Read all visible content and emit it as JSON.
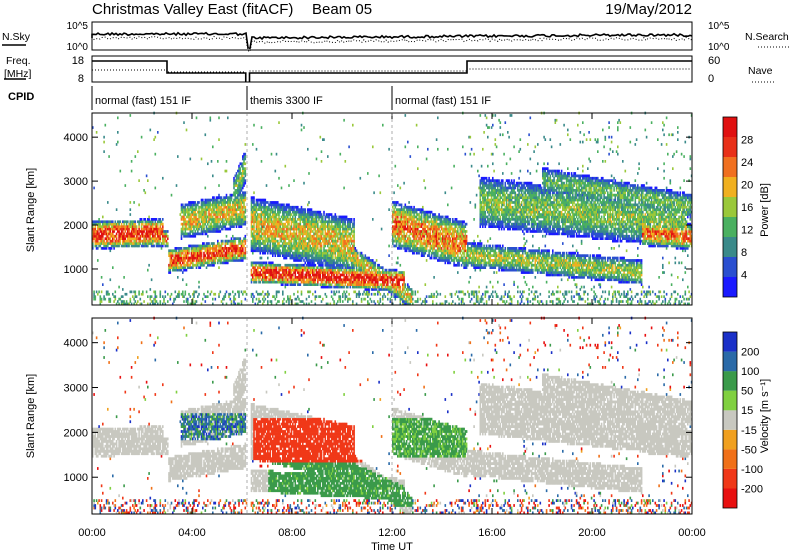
{
  "header": {
    "title": "Christmas Valley East (fitACF)",
    "beam": "Beam 05",
    "date": "19/May/2012"
  },
  "top_panels": {
    "nsky_label": "N.Sky",
    "nsky_ticks": [
      "10^5",
      "10^0"
    ],
    "nsearch_label": "N.Search",
    "nsearch_ticks": [
      "10^5",
      "10^0"
    ],
    "freq_label_1": "Freq.",
    "freq_label_2": "[MHz]",
    "freq_ticks": [
      "18",
      "8"
    ],
    "nave_label": "Nave",
    "nave_ticks": [
      "60",
      "0"
    ],
    "cpid_label": "CPID",
    "cpid_segments": [
      {
        "label": "normal (fast) 151 IF",
        "start": 0,
        "end": 6.2
      },
      {
        "label": "themis 3300 IF",
        "start": 6.2,
        "end": 12
      },
      {
        "label": "normal (fast) 151 IF",
        "start": 12,
        "end": 24
      }
    ]
  },
  "chart_data": [
    {
      "type": "heatmap",
      "name": "power",
      "ylabel": "Slant Range [km]",
      "yticks": [
        "1000",
        "2000",
        "3000",
        "4000"
      ],
      "ylim": [
        180,
        4550
      ],
      "xlim": [
        0,
        24
      ],
      "colorbar": {
        "label": "Power [dB]",
        "ticks": [
          "4",
          "8",
          "12",
          "16",
          "20",
          "24",
          "28"
        ],
        "colors": [
          "#1a1aff",
          "#2a4fd0",
          "#3a8a8a",
          "#4ab060",
          "#9ac83a",
          "#f0b020",
          "#f07020",
          "#e83018",
          "#e01010"
        ]
      }
    },
    {
      "type": "heatmap",
      "name": "velocity",
      "ylabel": "Slant Range [km]",
      "yticks": [
        "1000",
        "2000",
        "3000",
        "4000"
      ],
      "ylim": [
        180,
        4550
      ],
      "xlim": [
        0,
        24
      ],
      "xlabel": "Time UT",
      "xticks": [
        "00:00",
        "04:00",
        "08:00",
        "12:00",
        "16:00",
        "20:00",
        "00:00"
      ],
      "colorbar": {
        "label": "Velocity [m s⁻¹]",
        "ticks": [
          "200",
          "100",
          "50",
          "15",
          "-15",
          "-50",
          "-100",
          "-200"
        ],
        "colors": [
          "#1a30c8",
          "#2a6aa8",
          "#3a9a4a",
          "#80d040",
          "#c8c8c0",
          "#f0a020",
          "#f07018",
          "#f03818",
          "#e81010"
        ]
      }
    }
  ]
}
